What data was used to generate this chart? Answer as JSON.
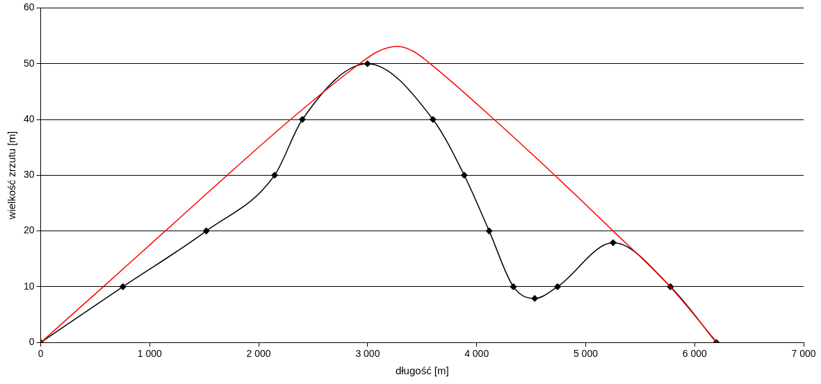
{
  "chart_data": {
    "type": "line",
    "xlabel": "długość [m]",
    "ylabel": "wielkość zrzutu [m]",
    "xlim": [
      0,
      7000
    ],
    "xticks": [
      0,
      {
        "value": 1000,
        "label": "1 000"
      },
      {
        "value": 2000,
        "label": "2 000"
      },
      {
        "value": 3000,
        "label": "3 000"
      },
      {
        "value": 4000,
        "label": "4 000"
      },
      {
        "value": 5000,
        "label": "5 000"
      },
      {
        "value": 6000,
        "label": "6 000"
      },
      {
        "value": 7000,
        "label": "7 000"
      }
    ],
    "ylim": [
      0,
      60
    ],
    "yticks": [
      0,
      10,
      20,
      30,
      40,
      50,
      60
    ],
    "grid": "y",
    "legend": false,
    "series": [
      {
        "color": "#ff0000",
        "marker": "none",
        "x": [
          0,
          575,
          1143,
          2293,
          2926,
          3096,
          3272,
          3420,
          3573,
          4160,
          4716,
          5252,
          5775,
          6205
        ],
        "values": [
          0,
          10,
          20,
          40,
          50,
          52.2,
          53.1,
          52.2,
          50,
          40,
          30,
          20,
          10,
          0
        ]
      },
      {
        "color": "#000000",
        "marker": "diamond",
        "x": [
          0,
          754,
          1519,
          2146,
          2401,
          2998,
          3599,
          3886,
          4115,
          4337,
          4533,
          4742,
          5252,
          5778,
          6199
        ],
        "values": [
          0,
          10,
          20,
          30,
          40,
          50,
          40,
          30,
          20,
          10,
          7.9,
          10,
          17.9,
          10,
          0
        ]
      }
    ]
  }
}
